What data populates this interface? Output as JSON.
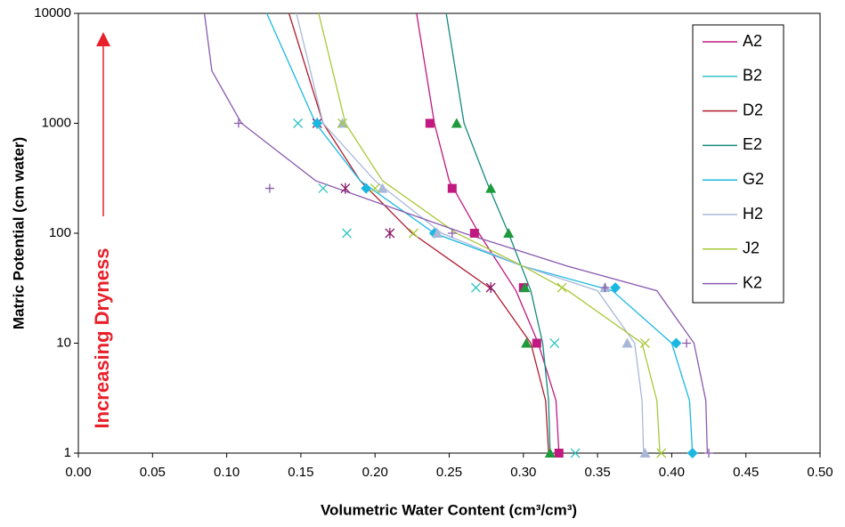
{
  "chart_data": {
    "type": "line",
    "x_label": "Volumetric Water Content (cm³/cm³)",
    "y_label": "Matric Potential (cm water)",
    "annotation": "Increasing Dryness",
    "xlim": [
      0,
      0.5
    ],
    "xticks": [
      {
        "value": 0,
        "label": "0.00"
      },
      {
        "value": 0.05,
        "label": "0.05"
      },
      {
        "value": 0.1,
        "label": "0.10"
      },
      {
        "value": 0.15,
        "label": "0.15"
      },
      {
        "value": 0.2,
        "label": "0.20"
      },
      {
        "value": 0.25,
        "label": "0.25"
      },
      {
        "value": 0.3,
        "label": "0.30"
      },
      {
        "value": 0.35,
        "label": "0.35"
      },
      {
        "value": 0.4,
        "label": "0.40"
      },
      {
        "value": 0.45,
        "label": "0.45"
      },
      {
        "value": 0.5,
        "label": "0.50"
      }
    ],
    "ylim": [
      1,
      10000
    ],
    "yticks": [
      1,
      10,
      100,
      1000,
      10000
    ],
    "log_y": true,
    "grid": false,
    "legend": "upper right",
    "series": [
      {
        "name": "A2",
        "color": "#c0197f",
        "marker": "square",
        "curve": {
          "x": [
            0.228,
            0.24,
            0.25,
            0.27,
            0.295,
            0.31,
            0.322,
            0.324
          ],
          "y": [
            10000,
            1000,
            300,
            100,
            30,
            10,
            3,
            1
          ]
        },
        "points": {
          "x": [
            0.237,
            0.252,
            0.267,
            0.3,
            0.309,
            0.324
          ],
          "y": [
            1000,
            256,
            100,
            32,
            10,
            1
          ]
        }
      },
      {
        "name": "B2",
        "color": "#33c4c4",
        "marker": "x",
        "points": {
          "x": [
            0.148,
            0.165,
            0.181,
            0.268,
            0.321,
            0.335
          ],
          "y": [
            1000,
            256,
            100,
            32,
            10,
            1
          ]
        }
      },
      {
        "name": "D2",
        "color": "#b01c2e",
        "marker": "asterisk",
        "point_color": "#8a1a6a",
        "curve": {
          "x": [
            0.142,
            0.165,
            0.19,
            0.225,
            0.28,
            0.305,
            0.315,
            0.317
          ],
          "y": [
            10000,
            1000,
            300,
            100,
            30,
            10,
            3,
            1
          ]
        },
        "points": {
          "x": [
            0.161,
            0.18,
            0.21,
            0.278
          ],
          "y": [
            1000,
            256,
            100,
            32
          ]
        }
      },
      {
        "name": "E2",
        "color": "#138a7e",
        "marker": "triangle",
        "point_color": "#1e9a3c",
        "curve": {
          "x": [
            0.248,
            0.26,
            0.275,
            0.29,
            0.305,
            0.313,
            0.317,
            0.318
          ],
          "y": [
            10000,
            1000,
            300,
            100,
            30,
            10,
            3,
            1
          ]
        },
        "points": {
          "x": [
            0.255,
            0.278,
            0.29,
            0.301,
            0.302,
            0.318
          ],
          "y": [
            1000,
            256,
            100,
            32,
            10,
            1
          ]
        }
      },
      {
        "name": "G2",
        "color": "#1ab8e0",
        "marker": "diamond",
        "curve": {
          "x": [
            0.127,
            0.16,
            0.19,
            0.24,
            0.3,
            0.36,
            0.4,
            0.412,
            0.414
          ],
          "y": [
            10000,
            1000,
            300,
            100,
            50,
            30,
            10,
            3,
            1
          ]
        },
        "points": {
          "x": [
            0.161,
            0.194,
            0.24,
            0.362,
            0.403,
            0.414
          ],
          "y": [
            1000,
            256,
            100,
            32,
            10,
            1
          ]
        }
      },
      {
        "name": "H2",
        "color": "#a9b8d8",
        "marker": "triangle",
        "curve": {
          "x": [
            0.147,
            0.165,
            0.2,
            0.245,
            0.3,
            0.35,
            0.375,
            0.38,
            0.381
          ],
          "y": [
            10000,
            1000,
            300,
            100,
            50,
            30,
            10,
            3,
            1
          ]
        },
        "points": {
          "x": [
            0.178,
            0.205,
            0.242,
            0.355,
            0.37,
            0.382
          ],
          "y": [
            1000,
            256,
            100,
            32,
            10,
            1
          ]
        }
      },
      {
        "name": "J2",
        "color": "#a8c83a",
        "marker": "x",
        "curve": {
          "x": [
            0.162,
            0.18,
            0.205,
            0.255,
            0.3,
            0.33,
            0.38,
            0.39,
            0.392
          ],
          "y": [
            10000,
            1000,
            300,
            100,
            50,
            30,
            10,
            3,
            1
          ]
        },
        "points": {
          "x": [
            0.178,
            0.2,
            0.226,
            0.326,
            0.382,
            0.393
          ],
          "y": [
            1000,
            256,
            100,
            32,
            10,
            1
          ]
        }
      },
      {
        "name": "K2",
        "color": "#8a5aae",
        "marker": "plus",
        "curve": {
          "x": [
            0.085,
            0.09,
            0.11,
            0.16,
            0.26,
            0.33,
            0.39,
            0.415,
            0.423,
            0.424
          ],
          "y": [
            10000,
            3000,
            1000,
            300,
            100,
            50,
            30,
            10,
            3,
            1
          ]
        },
        "points": {
          "x": [
            0.108,
            0.129,
            0.252,
            0.355,
            0.41,
            0.425
          ],
          "y": [
            1000,
            256,
            100,
            32,
            10,
            1
          ]
        }
      }
    ]
  }
}
